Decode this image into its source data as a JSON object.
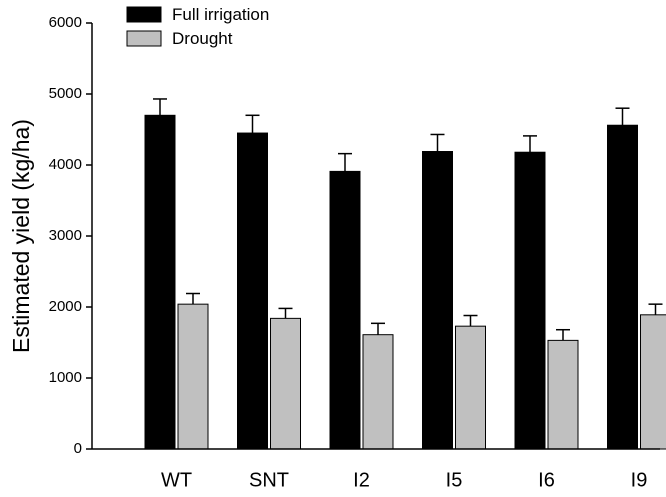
{
  "chart_data": {
    "type": "bar",
    "ylabel": "Estimated yield (kg/ha)",
    "xlabel": "",
    "ylim": [
      0,
      6000
    ],
    "yticks": [
      0,
      1000,
      2000,
      3000,
      4000,
      5000,
      6000
    ],
    "categories": [
      "WT",
      "SNT",
      "I2",
      "I5",
      "I6",
      "I9"
    ],
    "series": [
      {
        "name": "Full irrigation",
        "color": "#000000",
        "values": [
          4700,
          4450,
          3910,
          4190,
          4180,
          4560
        ],
        "errors": [
          230,
          250,
          250,
          240,
          230,
          240
        ]
      },
      {
        "name": "Drought",
        "color": "#c0c0c0",
        "values": [
          2040,
          1840,
          1610,
          1730,
          1530,
          1890
        ],
        "errors": [
          150,
          140,
          160,
          150,
          150,
          150
        ]
      }
    ],
    "legend_position": "top-left",
    "error_bars": "upper"
  }
}
